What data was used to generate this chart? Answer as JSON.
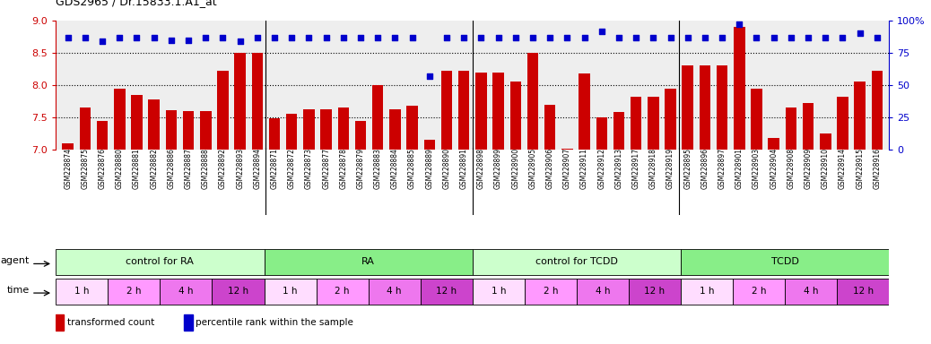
{
  "title": "GDS2965 / Dr.15833.1.A1_at",
  "xlabels": [
    "GSM228874",
    "GSM228875",
    "GSM228876",
    "GSM228880",
    "GSM228881",
    "GSM228882",
    "GSM228886",
    "GSM228887",
    "GSM228888",
    "GSM228892",
    "GSM228893",
    "GSM228894",
    "GSM228871",
    "GSM228872",
    "GSM228873",
    "GSM228877",
    "GSM228878",
    "GSM228879",
    "GSM228883",
    "GSM228884",
    "GSM228885",
    "GSM228889",
    "GSM228890",
    "GSM228891",
    "GSM228898",
    "GSM228899",
    "GSM228900",
    "GSM228905",
    "GSM228906",
    "GSM228907",
    "GSM228911",
    "GSM228912",
    "GSM228913",
    "GSM228917",
    "GSM228918",
    "GSM228919",
    "GSM228895",
    "GSM228896",
    "GSM228897",
    "GSM228901",
    "GSM228903",
    "GSM228904",
    "GSM228908",
    "GSM228909",
    "GSM228910",
    "GSM228914",
    "GSM228915",
    "GSM228916"
  ],
  "bar_values": [
    7.1,
    7.65,
    7.45,
    7.95,
    7.85,
    7.78,
    7.61,
    7.6,
    7.6,
    8.22,
    8.5,
    8.5,
    7.48,
    7.55,
    7.62,
    7.62,
    7.65,
    7.45,
    8.0,
    7.62,
    7.68,
    7.15,
    8.22,
    8.22,
    8.2,
    8.2,
    8.05,
    8.5,
    7.7,
    7.02,
    8.18,
    7.5,
    7.58,
    7.82,
    7.82,
    7.95,
    8.3,
    8.3,
    8.3,
    8.9,
    7.95,
    7.18,
    7.65,
    7.72,
    7.25,
    7.82,
    8.05,
    8.22
  ],
  "percentile_values": [
    87,
    87,
    84,
    87,
    87,
    87,
    85,
    85,
    87,
    87,
    84,
    87,
    87,
    87,
    87,
    87,
    87,
    87,
    87,
    87,
    87,
    57,
    87,
    87,
    87,
    87,
    87,
    87,
    87,
    87,
    87,
    92,
    87,
    87,
    87,
    87,
    87,
    87,
    87,
    97,
    87,
    87,
    87,
    87,
    87,
    87,
    90,
    87
  ],
  "bar_color": "#cc0000",
  "percentile_color": "#0000cc",
  "ylim_left": [
    7.0,
    9.0
  ],
  "ylim_right": [
    0,
    100
  ],
  "yticks_left": [
    7.0,
    7.5,
    8.0,
    8.5,
    9.0
  ],
  "yticks_right": [
    0,
    25,
    50,
    75,
    100
  ],
  "hlines": [
    7.5,
    8.0,
    8.5
  ],
  "agent_groups": [
    {
      "label": "control for RA",
      "start": 0,
      "end": 12,
      "color": "#ccffcc"
    },
    {
      "label": "RA",
      "start": 12,
      "end": 24,
      "color": "#88ee88"
    },
    {
      "label": "control for TCDD",
      "start": 24,
      "end": 36,
      "color": "#ccffcc"
    },
    {
      "label": "TCDD",
      "start": 36,
      "end": 48,
      "color": "#88ee88"
    }
  ],
  "time_colors": {
    "1 h": "#ffddff",
    "2 h": "#ff99ff",
    "4 h": "#ee77ee",
    "12 h": "#cc44cc"
  },
  "time_groups": [
    {
      "label": "1 h",
      "start": 0,
      "end": 3
    },
    {
      "label": "2 h",
      "start": 3,
      "end": 6
    },
    {
      "label": "4 h",
      "start": 6,
      "end": 9
    },
    {
      "label": "12 h",
      "start": 9,
      "end": 12
    },
    {
      "label": "1 h",
      "start": 12,
      "end": 15
    },
    {
      "label": "2 h",
      "start": 15,
      "end": 18
    },
    {
      "label": "4 h",
      "start": 18,
      "end": 21
    },
    {
      "label": "12 h",
      "start": 21,
      "end": 24
    },
    {
      "label": "1 h",
      "start": 24,
      "end": 27
    },
    {
      "label": "2 h",
      "start": 27,
      "end": 30
    },
    {
      "label": "4 h",
      "start": 30,
      "end": 33
    },
    {
      "label": "12 h",
      "start": 33,
      "end": 36
    },
    {
      "label": "1 h",
      "start": 36,
      "end": 39
    },
    {
      "label": "2 h",
      "start": 39,
      "end": 42
    },
    {
      "label": "4 h",
      "start": 42,
      "end": 45
    },
    {
      "label": "12 h",
      "start": 45,
      "end": 48
    }
  ],
  "legend_items": [
    {
      "label": "transformed count",
      "color": "#cc0000"
    },
    {
      "label": "percentile rank within the sample",
      "color": "#0000cc"
    }
  ],
  "agent_label": "agent",
  "time_label": "time",
  "bg_color": "#ffffff",
  "plot_bg": "#eeeeee",
  "group_separators": [
    12,
    24,
    36
  ]
}
